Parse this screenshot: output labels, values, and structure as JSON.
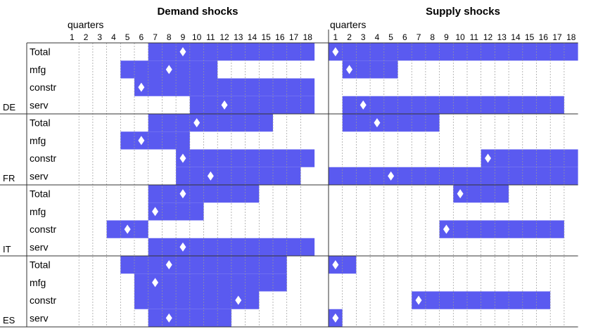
{
  "chart_data": {
    "type": "heatmap",
    "panels": [
      {
        "title": "Demand shocks",
        "xlabel": "quarters",
        "quarters": [
          1,
          2,
          3,
          4,
          5,
          6,
          7,
          8,
          9,
          10,
          11,
          12,
          13,
          14,
          15,
          16,
          17,
          18
        ],
        "rows": [
          {
            "country": "DE",
            "sector": "Total",
            "start": 7,
            "end": 18,
            "peak": 9
          },
          {
            "country": "DE",
            "sector": "mfg",
            "start": 5,
            "end": 11,
            "peak": 8
          },
          {
            "country": "DE",
            "sector": "constr",
            "start": 6,
            "end": 18,
            "peak": 6
          },
          {
            "country": "DE",
            "sector": "serv",
            "start": 10,
            "end": 18,
            "peak": 12
          },
          {
            "country": "FR",
            "sector": "Total",
            "start": 7,
            "end": 15,
            "peak": 10
          },
          {
            "country": "FR",
            "sector": "mfg",
            "start": 5,
            "end": 9,
            "peak": 6
          },
          {
            "country": "FR",
            "sector": "constr",
            "start": 9,
            "end": 18,
            "peak": 9
          },
          {
            "country": "FR",
            "sector": "serv",
            "start": 9,
            "end": 17,
            "peak": 11
          },
          {
            "country": "IT",
            "sector": "Total",
            "start": 7,
            "end": 14,
            "peak": 9
          },
          {
            "country": "IT",
            "sector": "mfg",
            "start": 7,
            "end": 10,
            "peak": 7
          },
          {
            "country": "IT",
            "sector": "constr",
            "start": 4,
            "end": 6,
            "peak": 5
          },
          {
            "country": "IT",
            "sector": "serv",
            "start": 7,
            "end": 18,
            "peak": 9
          },
          {
            "country": "ES",
            "sector": "Total",
            "start": 5,
            "end": 16,
            "peak": 8
          },
          {
            "country": "ES",
            "sector": "mfg",
            "start": 6,
            "end": 16,
            "peak": 7
          },
          {
            "country": "ES",
            "sector": "constr",
            "start": 6,
            "end": 14,
            "peak": 13
          },
          {
            "country": "ES",
            "sector": "serv",
            "start": 7,
            "end": 12,
            "peak": 8
          }
        ]
      },
      {
        "title": "Supply shocks",
        "xlabel": "quarters",
        "quarters": [
          1,
          2,
          3,
          4,
          5,
          6,
          7,
          8,
          9,
          10,
          11,
          12,
          13,
          14,
          15,
          16,
          17,
          18
        ],
        "rows": [
          {
            "country": "DE",
            "sector": "Total",
            "start": 1,
            "end": 18,
            "peak": 1
          },
          {
            "country": "DE",
            "sector": "mfg",
            "start": 2,
            "end": 5,
            "peak": 2
          },
          {
            "country": "DE",
            "sector": "constr",
            "start": null,
            "end": null,
            "peak": null
          },
          {
            "country": "DE",
            "sector": "serv",
            "start": 2,
            "end": 17,
            "peak": 3
          },
          {
            "country": "FR",
            "sector": "Total",
            "start": 2,
            "end": 8,
            "peak": 4
          },
          {
            "country": "FR",
            "sector": "mfg",
            "start": null,
            "end": null,
            "peak": null
          },
          {
            "country": "FR",
            "sector": "constr",
            "start": 12,
            "end": 18,
            "peak": 12
          },
          {
            "country": "FR",
            "sector": "serv",
            "start": 1,
            "end": 18,
            "peak": 5
          },
          {
            "country": "IT",
            "sector": "Total",
            "start": 10,
            "end": 13,
            "peak": 10
          },
          {
            "country": "IT",
            "sector": "mfg",
            "start": null,
            "end": null,
            "peak": null
          },
          {
            "country": "IT",
            "sector": "constr",
            "start": 9,
            "end": 17,
            "peak": 9
          },
          {
            "country": "IT",
            "sector": "serv",
            "start": null,
            "end": null,
            "peak": null
          },
          {
            "country": "ES",
            "sector": "Total",
            "start": 1,
            "end": 2,
            "peak": 1
          },
          {
            "country": "ES",
            "sector": "mfg",
            "start": null,
            "end": null,
            "peak": null
          },
          {
            "country": "ES",
            "sector": "constr",
            "start": 7,
            "end": 16,
            "peak": 7
          },
          {
            "country": "ES",
            "sector": "serv",
            "start": 1,
            "end": 1,
            "peak": 1
          }
        ]
      }
    ],
    "countries": [
      "DE",
      "FR",
      "IT",
      "ES"
    ],
    "sectors": [
      "Total",
      "mfg",
      "constr",
      "serv"
    ],
    "colors": {
      "bar": "#5a5af0",
      "marker": "#ffffff",
      "grid": "#999999",
      "border": "#333333"
    }
  }
}
